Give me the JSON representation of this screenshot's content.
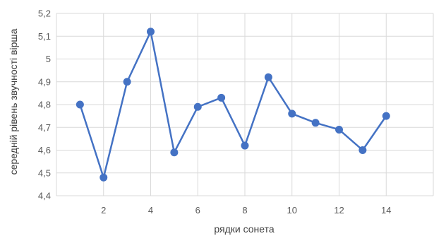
{
  "chart_data": {
    "type": "line",
    "title": "",
    "xlabel": "рядки сонета",
    "ylabel": "середній рівень звучності вірша",
    "x": [
      1,
      2,
      3,
      4,
      5,
      6,
      7,
      8,
      9,
      10,
      11,
      12,
      13,
      14
    ],
    "series": [
      {
        "values": [
          4.8,
          4.48,
          4.9,
          5.12,
          4.59,
          4.79,
          4.83,
          4.62,
          4.92,
          4.76,
          4.72,
          4.69,
          4.6,
          4.75
        ]
      }
    ],
    "xlim": [
      0,
      16
    ],
    "ylim": [
      4.4,
      5.2
    ],
    "x_ticks": [
      2,
      4,
      6,
      8,
      10,
      12,
      14
    ],
    "x_tick_labels": [
      "2",
      "4",
      "6",
      "8",
      "10",
      "12",
      "14"
    ],
    "y_ticks": [
      4.4,
      4.5,
      4.6,
      4.7,
      4.8,
      4.9,
      5.0,
      5.1,
      5.2
    ],
    "y_tick_labels": [
      "4,4",
      "4,5",
      "4,6",
      "4,7",
      "4,8",
      "4,9",
      "5",
      "5,1",
      "5,2"
    ],
    "grid": true,
    "legend": "none",
    "colors": {
      "line": "#4472c4",
      "marker": "#4472c4",
      "grid": "#d9d9d9",
      "text": "#595959"
    }
  }
}
